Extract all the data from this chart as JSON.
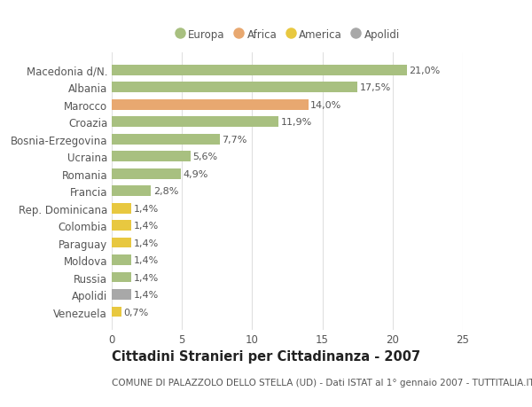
{
  "categories": [
    "Venezuela",
    "Apolidi",
    "Russia",
    "Moldova",
    "Paraguay",
    "Colombia",
    "Rep. Dominicana",
    "Francia",
    "Romania",
    "Ucraina",
    "Bosnia-Erzegovina",
    "Croazia",
    "Marocco",
    "Albania",
    "Macedonia d/N."
  ],
  "values": [
    0.7,
    1.4,
    1.4,
    1.4,
    1.4,
    1.4,
    1.4,
    2.8,
    4.9,
    5.6,
    7.7,
    11.9,
    14.0,
    17.5,
    21.0
  ],
  "labels": [
    "0,7%",
    "1,4%",
    "1,4%",
    "1,4%",
    "1,4%",
    "1,4%",
    "1,4%",
    "2,8%",
    "4,9%",
    "5,6%",
    "7,7%",
    "11,9%",
    "14,0%",
    "17,5%",
    "21,0%"
  ],
  "colors": [
    "#e8c840",
    "#a8a8a8",
    "#a8c080",
    "#a8c080",
    "#e8c840",
    "#e8c840",
    "#e8c840",
    "#a8c080",
    "#a8c080",
    "#a8c080",
    "#a8c080",
    "#a8c080",
    "#e8a870",
    "#a8c080",
    "#a8c080"
  ],
  "legend": [
    {
      "label": "Europa",
      "color": "#a8c080"
    },
    {
      "label": "Africa",
      "color": "#e8a870"
    },
    {
      "label": "America",
      "color": "#e8c840"
    },
    {
      "label": "Apolidi",
      "color": "#a8a8a8"
    }
  ],
  "xlim": [
    0,
    25
  ],
  "xticks": [
    0,
    5,
    10,
    15,
    20,
    25
  ],
  "title": "Cittadini Stranieri per Cittadinanza - 2007",
  "subtitle": "COMUNE DI PALAZZOLO DELLO STELLA (UD) - Dati ISTAT al 1° gennaio 2007 - TUTTITALIA.IT",
  "background_color": "#ffffff",
  "grid_color": "#e0e0e0",
  "text_color": "#555555",
  "label_fontsize": 8.0,
  "tick_fontsize": 8.5,
  "title_fontsize": 10.5,
  "subtitle_fontsize": 7.5
}
